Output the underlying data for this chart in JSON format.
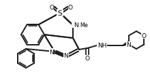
{
  "bg_color": "#ffffff",
  "line_color": "#1a1a1a",
  "lw": 1.4,
  "fs": 6.5,
  "fs_small": 5.8
}
